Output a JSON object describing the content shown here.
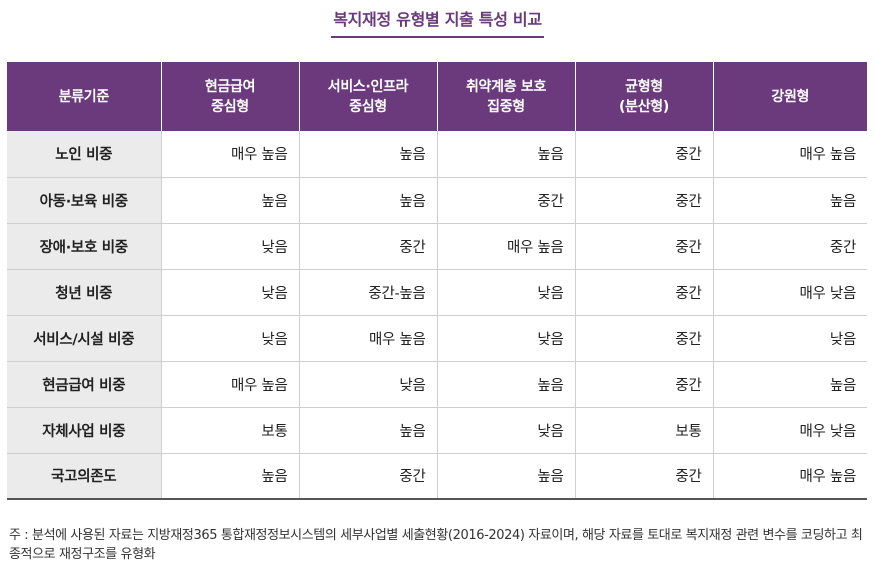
{
  "title": "복지재정 유형별 지출 특성 비교",
  "table": {
    "headers": [
      {
        "lines": [
          "분류기준"
        ]
      },
      {
        "lines": [
          "현금급여",
          "중심형"
        ]
      },
      {
        "lines": [
          "서비스·인프라",
          "중심형"
        ]
      },
      {
        "lines": [
          "취약계층 보호",
          "집중형"
        ]
      },
      {
        "lines": [
          "균형형",
          "(분산형)"
        ]
      },
      {
        "lines": [
          "강원형"
        ]
      }
    ],
    "rows": [
      {
        "label": "노인 비중",
        "cells": [
          "매우 높음",
          "높음",
          "높음",
          "중간",
          "매우 높음"
        ]
      },
      {
        "label": "아동·보육 비중",
        "cells": [
          "높음",
          "높음",
          "중간",
          "중간",
          "높음"
        ]
      },
      {
        "label": "장애·보호 비중",
        "cells": [
          "낮음",
          "중간",
          "매우 높음",
          "중간",
          "중간"
        ]
      },
      {
        "label": "청년 비중",
        "cells": [
          "낮음",
          "중간-높음",
          "낮음",
          "중간",
          "매우 낮음"
        ]
      },
      {
        "label": "서비스/시설 비중",
        "cells": [
          "낮음",
          "매우 높음",
          "낮음",
          "중간",
          "낮음"
        ]
      },
      {
        "label": "현금급여 비중",
        "cells": [
          "매우 높음",
          "낮음",
          "높음",
          "중간",
          "높음"
        ]
      },
      {
        "label": "자체사업 비중",
        "cells": [
          "보통",
          "높음",
          "낮음",
          "보통",
          "매우 낮음"
        ]
      },
      {
        "label": "국고의존도",
        "cells": [
          "높음",
          "중간",
          "높음",
          "중간",
          "매우 높음"
        ]
      }
    ]
  },
  "note": "주 : 분석에 사용된 자료는 지방재정365 통합재정정보시스템의 세부사업별 세출현황(2016-2024) 자료이며, 해당 자료를 토대로 복지재정 관련 변수를 코딩하고 최종적으로 재정구조를 유형화"
}
